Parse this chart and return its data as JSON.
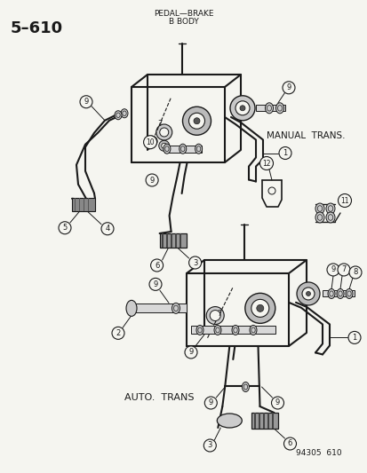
{
  "title_left": "5–610",
  "title_center_line1": "PEDAL—BRAKE",
  "title_center_line2": "B BODY",
  "label_manual": "MANUAL  TRANS.",
  "label_auto": "AUTO.  TRANS",
  "label_footer": "94305  610",
  "bg_color": "#f5f5f0",
  "line_color": "#1a1a1a",
  "text_color": "#1a1a1a"
}
